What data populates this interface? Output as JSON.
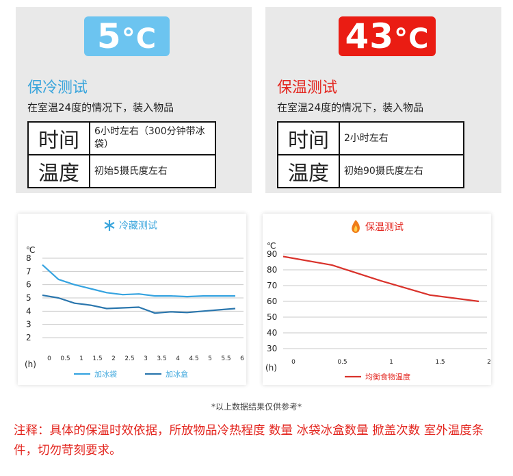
{
  "cold_panel": {
    "badge_number": "5",
    "badge_unit": "°C",
    "title": "保冷测试",
    "desc": "在室温24度的情况下，装入物品",
    "rows": [
      {
        "key": "时间",
        "value": "6小时左右（300分钟带冰袋）"
      },
      {
        "key": "温度",
        "value": "初始5摄氏度左右"
      }
    ]
  },
  "warm_panel": {
    "badge_number": "43",
    "badge_unit": "°C",
    "title": "保温测试",
    "desc": "在室温24度的情况下，装入物品",
    "rows": [
      {
        "key": "时间",
        "value": "2小时左右"
      },
      {
        "key": "温度",
        "value": "初始90摄氏度左右"
      }
    ]
  },
  "colors": {
    "cold_accent": "#3aa5dc",
    "cold_series_1": "#35a3e0",
    "cold_series_2": "#2a76ad",
    "warm_accent": "#e3261f",
    "warm_series": "#d9322b",
    "cold_badge_bg": "#6cc4f0",
    "warm_badge_bg": "#ea1c13"
  },
  "icons": {
    "cold": "snowflake-icon",
    "warm": "flame-icon"
  },
  "chart_data": [
    {
      "type": "line",
      "title": "冷藏测试",
      "y_unit": "℃",
      "x_unit": "(h)",
      "x": [
        0,
        0.5,
        1,
        1.5,
        2,
        2.5,
        3,
        3.5,
        4,
        4.5,
        5,
        5.5,
        6
      ],
      "x_tick_labels": [
        "0",
        "0.5",
        "1",
        "1.5",
        "2",
        "2.5",
        "3",
        "3.5",
        "4",
        "4.5",
        "5",
        "5.5",
        "6"
      ],
      "y_ticks": [
        2,
        3,
        4,
        5,
        6,
        7,
        8
      ],
      "ylim": [
        2,
        8
      ],
      "grid": true,
      "legend_position": "bottom",
      "series": [
        {
          "name": "加冰袋",
          "values": [
            7.5,
            6.4,
            6.0,
            5.7,
            5.4,
            5.25,
            5.3,
            5.15,
            5.15,
            5.1,
            5.15,
            5.15,
            5.15
          ]
        },
        {
          "name": "加冰盒",
          "values": [
            5.2,
            5.0,
            4.6,
            4.45,
            4.2,
            4.25,
            4.3,
            3.85,
            3.95,
            3.9,
            4.0,
            4.1,
            4.2
          ]
        }
      ]
    },
    {
      "type": "line",
      "title": "保温测试",
      "y_unit": "℃",
      "x_unit": "(h)",
      "x": [
        0,
        0.5,
        1,
        1.5,
        2
      ],
      "x_tick_labels": [
        "0",
        "0.5",
        "1",
        "1.5",
        "2"
      ],
      "y_ticks": [
        30,
        40,
        50,
        60,
        70,
        80,
        90
      ],
      "ylim": [
        30,
        90
      ],
      "grid": true,
      "legend_position": "bottom",
      "series": [
        {
          "name": "均衡食物温度",
          "values": [
            88.5,
            83,
            73,
            64,
            60
          ]
        }
      ]
    }
  ],
  "footnote": "*以上数据结果仅供参考*",
  "annotation": "注释：具体的保温时效依据，所放物品冷热程度 数量 冰袋冰盒数量 掀盖次数 室外温度条件，切勿苛刻要求。"
}
